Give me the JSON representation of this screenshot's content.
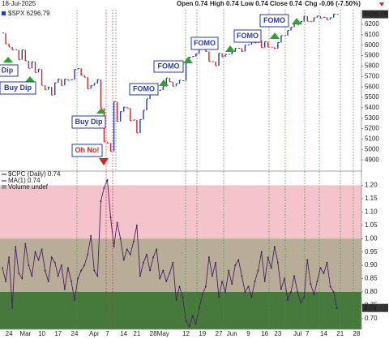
{
  "header": {
    "date": "18-Jul-2025",
    "quote": [
      "Open 0.74",
      "High 0.74",
      "Low 0.74",
      "Close 0.74",
      "Chg -0.06 (-7.50%)"
    ]
  },
  "annotations": [
    "Dip",
    "Buy Dip",
    "Buy Dip",
    "Oh No!",
    "FOMO",
    "FOMO",
    "FOMO",
    "FOMO",
    "FOMO"
  ],
  "chart_data": [
    {
      "type": "ohlc",
      "up_color": "#1f3fbf",
      "down_color": "#d8232a",
      "series": [
        {
          "name": "$SPX 6296.79",
          "color": "#1f3fbf",
          "values": [
            6117,
            6013,
            5983,
            5955,
            5956,
            5861,
            5955,
            5850,
            5778,
            5842,
            5738,
            5770,
            5615,
            5572,
            5599,
            5521,
            5639,
            5675,
            5614,
            5675,
            5663,
            5668,
            5768,
            5777,
            5712,
            5693,
            5581,
            5612,
            5633,
            5671,
            5397,
            5074,
            5062,
            4982,
            5457,
            5268,
            5363,
            5406,
            5397,
            5276,
            5283,
            5158,
            5288,
            5376,
            5485,
            5525,
            5528,
            5561,
            5569,
            5604,
            5686,
            5650,
            5607,
            5631,
            5664,
            5660,
            5844,
            5886,
            5892,
            5916,
            5958,
            5964,
            5940,
            5845,
            5842,
            5802,
            5922,
            5889,
            5912,
            5911,
            5936,
            5970,
            5971,
            5939,
            6000,
            6006,
            6038,
            6022,
            6045,
            5977,
            6033,
            5982,
            5981,
            5967,
            6025,
            6092,
            6092,
            6141,
            6173,
            6205,
            6198,
            6227,
            6279,
            6230,
            6225,
            6263,
            6280,
            6260,
            6268,
            6244,
            6264,
            6297,
            6296.79,
            null,
            null,
            null,
            null,
            null,
            null,
            null
          ]
        }
      ],
      "ylim": [
        4800,
        6340
      ],
      "yticks": [
        4900,
        5000,
        5100,
        5200,
        5300,
        5400,
        5500,
        5600,
        5700,
        5800,
        5900,
        6000,
        6100,
        6200
      ]
    },
    {
      "type": "line",
      "categories": [
        null,
        null,
        "24",
        null,
        null,
        null,
        null,
        "Mar",
        null,
        null,
        null,
        null,
        "10",
        null,
        null,
        null,
        null,
        "17",
        null,
        null,
        null,
        null,
        "24",
        null,
        null,
        null,
        null,
        null,
        "Apr",
        null,
        null,
        null,
        "7",
        null,
        null,
        null,
        null,
        "14",
        null,
        null,
        null,
        "21",
        null,
        null,
        null,
        null,
        "28",
        null,
        null,
        "May",
        null,
        null,
        null,
        null,
        null,
        null,
        "12",
        null,
        null,
        null,
        null,
        "19",
        null,
        null,
        null,
        null,
        "27",
        null,
        null,
        null,
        "Jun",
        null,
        null,
        null,
        null,
        "9",
        null,
        null,
        null,
        null,
        "16",
        null,
        null,
        null,
        "23",
        null,
        null,
        null,
        null,
        null,
        "Jul",
        null,
        null,
        "7",
        null,
        null,
        null,
        null,
        "14",
        null,
        null,
        null,
        null,
        "21",
        null,
        null,
        null,
        null,
        "28",
        null
      ],
      "series": [
        {
          "name": "$CPC (Daily) 0.74",
          "color": "#4b2060",
          "values": [
            0.89,
            0.84,
            0.93,
            0.74,
            0.97,
            0.87,
            0.85,
            0.98,
            0.9,
            0.86,
            0.95,
            0.92,
            0.96,
            0.88,
            0.84,
            0.93,
            0.91,
            0.86,
            0.9,
            0.81,
            0.89,
            0.84,
            0.77,
            0.85,
            0.88,
            0.9,
            0.94,
            1.01,
            0.88,
            0.86,
            1.14,
            1.19,
            1.22,
            1.08,
            0.97,
            1.06,
            1.0,
            0.92,
            0.96,
            0.94,
            0.99,
            1.05,
            0.86,
            0.91,
            0.94,
            0.88,
            0.93,
            0.96,
            0.85,
            0.88,
            0.84,
            0.87,
            0.91,
            0.77,
            0.82,
            0.78,
            0.69,
            0.67,
            0.71,
            0.68,
            0.74,
            0.79,
            0.82,
            0.93,
            0.86,
            0.91,
            0.78,
            0.84,
            0.8,
            0.88,
            0.83,
            0.9,
            0.92,
            0.86,
            0.8,
            0.82,
            0.78,
            0.84,
            0.88,
            0.95,
            0.84,
            0.93,
            0.89,
            0.97,
            0.91,
            0.81,
            0.85,
            0.77,
            0.8,
            0.86,
            0.8,
            0.76,
            0.78,
            0.92,
            0.83,
            0.79,
            0.84,
            0.89,
            0.87,
            0.91,
            0.82,
            0.8,
            0.74,
            null,
            null,
            null,
            null,
            null,
            null,
            null
          ]
        }
      ],
      "extra_legend": [
        "MA(1) 0.74",
        "Volume undef"
      ],
      "bands": [
        {
          "from": 1.0,
          "to": 1.2,
          "color": "#f4c3cb"
        },
        {
          "from": 0.8,
          "to": 1.0,
          "color": "#b8ae98"
        },
        {
          "from": 0.66,
          "to": 0.8,
          "color": "#467a3d"
        }
      ],
      "ylim": [
        0.66,
        1.25
      ],
      "yticks": [
        {
          "value": 0.7,
          "label": "0.70"
        },
        0.75,
        {
          "value": 0.8,
          "label": "0.80"
        },
        0.85,
        {
          "value": 0.9,
          "label": "0.90"
        },
        0.95,
        {
          "value": 1,
          "label": "1.00"
        },
        1.05,
        {
          "value": 1.1,
          "label": "1.10"
        },
        1.15,
        {
          "value": 1.2,
          "label": "1.20"
        }
      ]
    }
  ]
}
